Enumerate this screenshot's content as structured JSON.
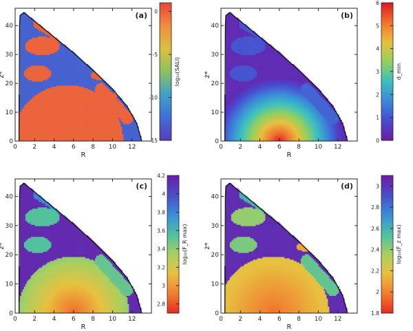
{
  "chart_data": [
    {
      "type": "heatmap",
      "panel_label": "(a)",
      "xlabel": "R",
      "ylabel": "ż*",
      "xlim": [
        0,
        14
      ],
      "ylim": [
        0,
        46
      ],
      "xticks": [
        0,
        2,
        4,
        6,
        8,
        10,
        12
      ],
      "yticks": [
        0,
        10,
        20,
        30,
        40
      ],
      "colorbar": {
        "label": "log₁₀(SALI)",
        "ticks": [
          0,
          -5,
          -10,
          -15
        ],
        "range": [
          -15,
          1
        ],
        "colors": [
          "#5a3fb8",
          "#3f6fd8",
          "#40a0c8",
          "#8cc060",
          "#d8c040",
          "#f09040",
          "#e84a3a"
        ]
      },
      "boundary_points": [
        [
          0.4,
          0
        ],
        [
          0.45,
          40
        ],
        [
          0.5,
          43.5
        ],
        [
          0.9,
          44.5
        ],
        [
          2.0,
          41.5
        ],
        [
          4.0,
          36.0
        ],
        [
          6.0,
          30.5
        ],
        [
          8.0,
          24.5
        ],
        [
          10.0,
          18.0
        ],
        [
          11.5,
          12.0
        ],
        [
          12.5,
          6.0
        ],
        [
          13.0,
          0
        ]
      ],
      "background_value": -13,
      "regions": [
        {
          "shape": "ellipse",
          "center": [
            5.4,
            0
          ],
          "radii": [
            5.7,
            19.5
          ],
          "value": 0
        },
        {
          "shape": "ellipse",
          "center": [
            2.3,
            23.5
          ],
          "radii": [
            1.4,
            2.8
          ],
          "value": 0
        },
        {
          "shape": "ellipse",
          "center": [
            2.8,
            33.0
          ],
          "radii": [
            1.8,
            3.2
          ],
          "value": 0
        },
        {
          "shape": "band",
          "from": [
            2.5,
            41.0
          ],
          "to": [
            6.0,
            34.0
          ],
          "width": 1.3,
          "value": 0
        },
        {
          "shape": "ellipse",
          "center": [
            8.8,
            22.8
          ],
          "radii": [
            1.1,
            1.6
          ],
          "value": 0
        },
        {
          "shape": "band",
          "from": [
            8.8,
            18.0
          ],
          "to": [
            11.5,
            8.0
          ],
          "width": 1.2,
          "value": 0
        },
        {
          "shape": "band",
          "from": [
            10.8,
            20.0
          ],
          "to": [
            9.6,
            10.5
          ],
          "width": 0.5,
          "value": 0
        }
      ]
    },
    {
      "type": "heatmap",
      "panel_label": "(b)",
      "xlabel": "R",
      "ylabel": "ż*",
      "xlim": [
        0,
        14
      ],
      "ylim": [
        0,
        46
      ],
      "xticks": [
        0,
        2,
        4,
        6,
        8,
        10,
        12
      ],
      "yticks": [
        0,
        10,
        20,
        30,
        40
      ],
      "colorbar": {
        "label": "d_min",
        "ticks": [
          0,
          1,
          2,
          3,
          4,
          5,
          6
        ],
        "range": [
          0,
          6
        ],
        "colors": [
          "#6a1fa8",
          "#4a4ad0",
          "#3a8ad8",
          "#3cc0c0",
          "#8ed060",
          "#e8c040",
          "#f07830",
          "#e02020"
        ]
      },
      "boundary_points": [
        [
          0.4,
          0
        ],
        [
          0.45,
          40
        ],
        [
          0.5,
          43.5
        ],
        [
          0.9,
          44.5
        ],
        [
          2.0,
          41.5
        ],
        [
          4.0,
          36.0
        ],
        [
          6.0,
          30.5
        ],
        [
          8.0,
          24.5
        ],
        [
          10.0,
          18.0
        ],
        [
          11.5,
          12.0
        ],
        [
          12.5,
          6.0
        ],
        [
          13.0,
          0
        ]
      ],
      "background_value": 0.25,
      "gradient": {
        "center": [
          6.0,
          0
        ],
        "radii": [
          6.6,
          22.0
        ],
        "peak": 6.0,
        "edge": 0.25
      },
      "regions": [
        {
          "shape": "ellipse",
          "center": [
            2.3,
            23.5
          ],
          "radii": [
            1.4,
            2.8
          ],
          "value": 1.0
        },
        {
          "shape": "ellipse",
          "center": [
            2.8,
            33.0
          ],
          "radii": [
            1.8,
            3.2
          ],
          "value": 1.0
        },
        {
          "shape": "band",
          "from": [
            2.5,
            41.0
          ],
          "to": [
            6.0,
            34.0
          ],
          "width": 1.3,
          "value": 1.0
        },
        {
          "shape": "band",
          "from": [
            8.8,
            18.0
          ],
          "to": [
            11.5,
            8.0
          ],
          "width": 1.2,
          "value": 1.2
        }
      ]
    },
    {
      "type": "heatmap",
      "panel_label": "(c)",
      "xlabel": "R",
      "ylabel": "ż*",
      "xlim": [
        0,
        14
      ],
      "ylim": [
        0,
        46
      ],
      "xticks": [
        0,
        2,
        4,
        6,
        8,
        10,
        12
      ],
      "yticks": [
        0,
        10,
        20,
        30,
        40
      ],
      "colorbar": {
        "label": "log₁₀(F_R max)",
        "ticks": [
          2.8,
          3.0,
          3.2,
          3.4,
          3.6,
          3.8,
          4.0,
          4.2
        ],
        "range": [
          2.7,
          4.2
        ],
        "colors": [
          "#e83020",
          "#f08030",
          "#e8c040",
          "#a8d060",
          "#50c0a0",
          "#3a90d8",
          "#4a50c8",
          "#6a20a8"
        ]
      },
      "boundary_points": [
        [
          0.4,
          0
        ],
        [
          0.45,
          40
        ],
        [
          0.5,
          43.5
        ],
        [
          0.9,
          44.5
        ],
        [
          2.0,
          41.5
        ],
        [
          4.0,
          36.0
        ],
        [
          6.0,
          30.5
        ],
        [
          8.0,
          24.5
        ],
        [
          10.0,
          18.0
        ],
        [
          11.5,
          12.0
        ],
        [
          12.5,
          6.0
        ],
        [
          13.0,
          0
        ]
      ],
      "background_value": 4.15,
      "gradient": {
        "center": [
          6.0,
          0
        ],
        "radii": [
          5.7,
          19.5
        ],
        "peak": 2.85,
        "edge": 3.4
      },
      "regions": [
        {
          "shape": "ellipse",
          "center": [
            2.3,
            23.5
          ],
          "radii": [
            1.4,
            2.8
          ],
          "value": 3.55
        },
        {
          "shape": "ellipse",
          "center": [
            2.8,
            33.0
          ],
          "radii": [
            1.8,
            3.2
          ],
          "value": 3.55
        },
        {
          "shape": "band",
          "from": [
            2.5,
            41.0
          ],
          "to": [
            6.0,
            34.0
          ],
          "width": 1.3,
          "value": 3.8
        },
        {
          "shape": "band",
          "from": [
            8.8,
            18.0
          ],
          "to": [
            11.5,
            8.0
          ],
          "width": 1.2,
          "value": 3.5
        }
      ]
    },
    {
      "type": "heatmap",
      "panel_label": "(d)",
      "xlabel": "R",
      "ylabel": "ż*",
      "xlim": [
        0,
        14
      ],
      "ylim": [
        0,
        46
      ],
      "xticks": [
        0,
        2,
        4,
        6,
        8,
        10,
        12
      ],
      "yticks": [
        0,
        10,
        20,
        30,
        40
      ],
      "colorbar": {
        "label": "log₁₀(F_z max)",
        "ticks": [
          1.8,
          2.0,
          2.2,
          2.4,
          2.6,
          2.8,
          3.0
        ],
        "range": [
          1.8,
          3.1
        ],
        "colors": [
          "#e83020",
          "#f08030",
          "#e8c040",
          "#a8d060",
          "#50c0a0",
          "#3a90d8",
          "#4a50c8",
          "#6a20a8"
        ]
      },
      "boundary_points": [
        [
          0.4,
          0
        ],
        [
          0.45,
          40
        ],
        [
          0.5,
          43.5
        ],
        [
          0.9,
          44.5
        ],
        [
          2.0,
          41.5
        ],
        [
          4.0,
          36.0
        ],
        [
          6.0,
          30.5
        ],
        [
          8.0,
          24.5
        ],
        [
          10.0,
          18.0
        ],
        [
          11.5,
          12.0
        ],
        [
          12.5,
          6.0
        ],
        [
          13.0,
          0
        ]
      ],
      "background_value": 3.05,
      "gradient": {
        "center": [
          5.4,
          0
        ],
        "radii": [
          5.7,
          19.5
        ],
        "peak": 1.95,
        "edge": 2.2
      },
      "regions": [
        {
          "shape": "ellipse",
          "center": [
            2.3,
            23.5
          ],
          "radii": [
            1.4,
            2.8
          ],
          "value": 2.45
        },
        {
          "shape": "ellipse",
          "center": [
            2.8,
            33.0
          ],
          "radii": [
            1.8,
            3.2
          ],
          "value": 2.4
        },
        {
          "shape": "band",
          "from": [
            2.5,
            41.0
          ],
          "to": [
            6.0,
            34.0
          ],
          "width": 1.3,
          "value": 2.6
        },
        {
          "shape": "ellipse",
          "center": [
            8.8,
            22.8
          ],
          "radii": [
            1.1,
            1.6
          ],
          "value": 2.1
        },
        {
          "shape": "band",
          "from": [
            8.8,
            18.0
          ],
          "to": [
            11.5,
            8.0
          ],
          "width": 1.2,
          "value": 2.5
        }
      ]
    }
  ]
}
